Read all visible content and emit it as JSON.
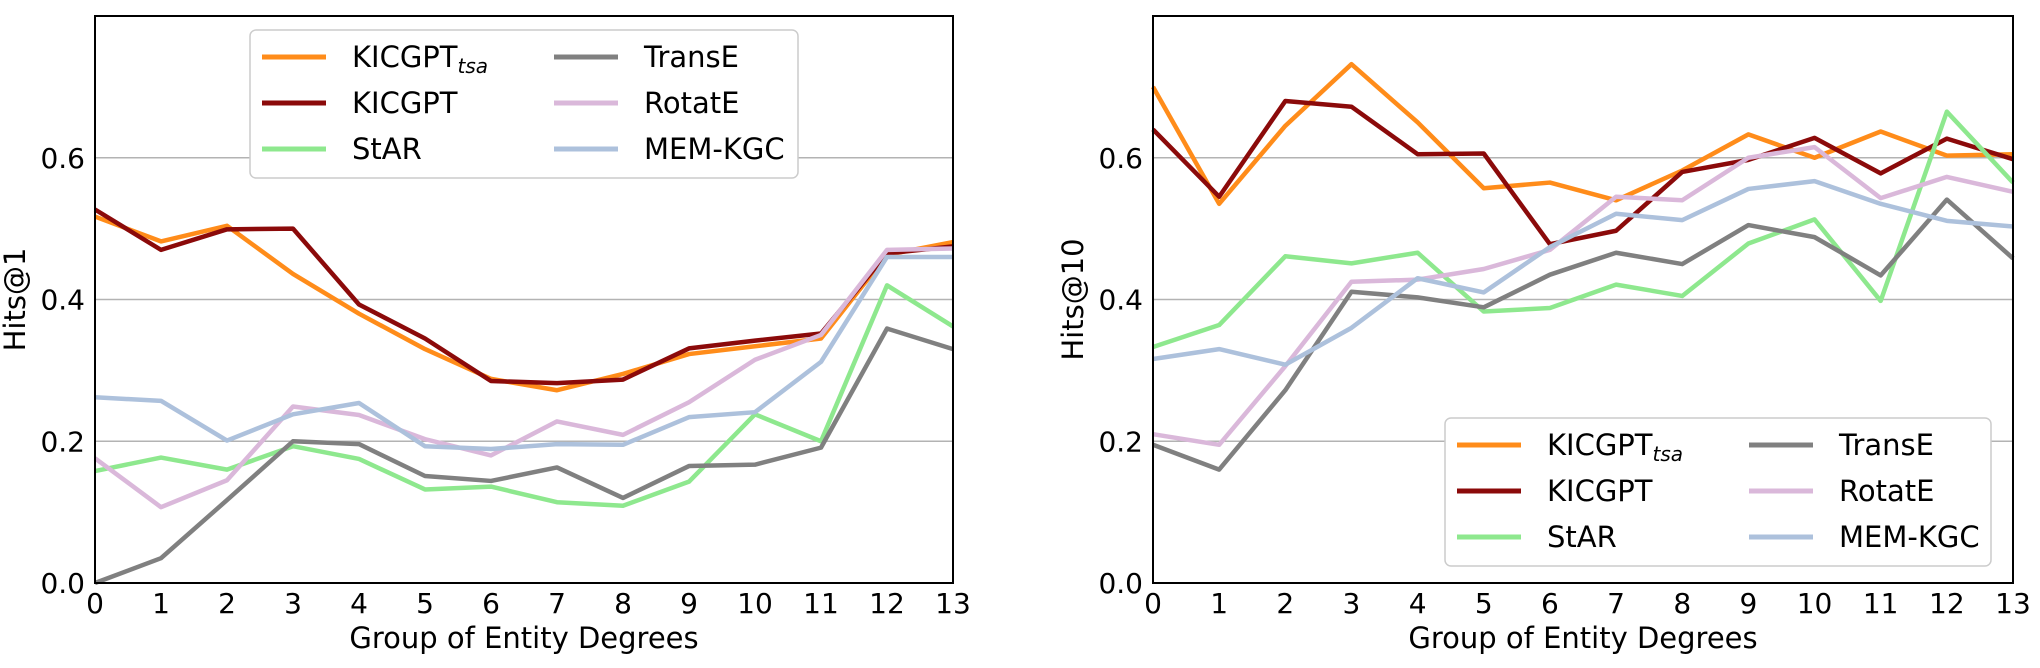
{
  "chart_data": [
    {
      "type": "line",
      "title": "",
      "xlabel": "Group of Entity Degrees",
      "ylabel": "Hits@1",
      "x": [
        0,
        1,
        2,
        3,
        4,
        5,
        6,
        7,
        8,
        9,
        10,
        11,
        12,
        13
      ],
      "xlim": [
        0,
        13
      ],
      "ylim": [
        0,
        0.8
      ],
      "yticks": [
        0.0,
        0.2,
        0.4,
        0.6
      ],
      "ytick_labels": [
        "0.0",
        "0.2",
        "0.4",
        "0.6"
      ],
      "grid": "horizontal",
      "legend_position": "top-center",
      "series": [
        {
          "name": "KICGPT",
          "name_sub": "tsa",
          "color": "#ff8c1a",
          "values": [
            0.517,
            0.482,
            0.504,
            0.436,
            0.38,
            0.33,
            0.288,
            0.272,
            0.295,
            0.323,
            0.334,
            0.345,
            0.463,
            0.481
          ]
        },
        {
          "name": "KICGPT",
          "name_sub": "",
          "color": "#8b0a0a",
          "values": [
            0.527,
            0.47,
            0.499,
            0.5,
            0.393,
            0.345,
            0.285,
            0.282,
            0.287,
            0.331,
            0.342,
            0.352,
            0.465,
            0.475
          ]
        },
        {
          "name": "StAR",
          "name_sub": "",
          "color": "#8ee88e",
          "values": [
            0.158,
            0.177,
            0.16,
            0.193,
            0.175,
            0.132,
            0.136,
            0.114,
            0.109,
            0.143,
            0.238,
            0.2,
            0.42,
            0.362
          ]
        },
        {
          "name": "TransE",
          "name_sub": "",
          "color": "#808080",
          "values": [
            0.0,
            0.035,
            0.117,
            0.2,
            0.196,
            0.151,
            0.144,
            0.163,
            0.12,
            0.165,
            0.167,
            0.191,
            0.359,
            0.33
          ]
        },
        {
          "name": "RotatE",
          "name_sub": "",
          "color": "#dab8da",
          "values": [
            0.176,
            0.107,
            0.145,
            0.249,
            0.237,
            0.203,
            0.18,
            0.228,
            0.209,
            0.255,
            0.315,
            0.35,
            0.47,
            0.472
          ]
        },
        {
          "name": "MEM-KGC",
          "name_sub": "",
          "color": "#adc1dc",
          "values": [
            0.262,
            0.257,
            0.201,
            0.238,
            0.254,
            0.193,
            0.189,
            0.196,
            0.195,
            0.234,
            0.241,
            0.312,
            0.46,
            0.46
          ]
        }
      ]
    },
    {
      "type": "line",
      "title": "",
      "xlabel": "Group of Entity Degrees",
      "ylabel": "Hits@10",
      "x": [
        0,
        1,
        2,
        3,
        4,
        5,
        6,
        7,
        8,
        9,
        10,
        11,
        12,
        13
      ],
      "xlim": [
        0,
        13
      ],
      "ylim": [
        0,
        0.8
      ],
      "yticks": [
        0.0,
        0.2,
        0.4,
        0.6
      ],
      "ytick_labels": [
        "0.0",
        "0.2",
        "0.4",
        "0.6"
      ],
      "grid": "horizontal",
      "legend_position": "bottom-right",
      "series": [
        {
          "name": "KICGPT",
          "name_sub": "tsa",
          "color": "#ff8c1a",
          "values": [
            0.7,
            0.535,
            0.645,
            0.732,
            0.65,
            0.557,
            0.565,
            0.54,
            0.582,
            0.633,
            0.6,
            0.637,
            0.603,
            0.605
          ]
        },
        {
          "name": "KICGPT",
          "name_sub": "",
          "color": "#8b0a0a",
          "values": [
            0.64,
            0.545,
            0.68,
            0.672,
            0.605,
            0.606,
            0.478,
            0.497,
            0.58,
            0.597,
            0.628,
            0.578,
            0.627,
            0.598
          ]
        },
        {
          "name": "StAR",
          "name_sub": "",
          "color": "#8ee88e",
          "values": [
            0.333,
            0.364,
            0.461,
            0.451,
            0.466,
            0.383,
            0.388,
            0.421,
            0.405,
            0.479,
            0.513,
            0.398,
            0.665,
            0.565
          ]
        },
        {
          "name": "TransE",
          "name_sub": "",
          "color": "#808080",
          "values": [
            0.195,
            0.16,
            0.272,
            0.411,
            0.403,
            0.389,
            0.435,
            0.466,
            0.45,
            0.505,
            0.488,
            0.434,
            0.541,
            0.458
          ]
        },
        {
          "name": "RotatE",
          "name_sub": "",
          "color": "#dab8da",
          "values": [
            0.21,
            0.195,
            0.306,
            0.425,
            0.428,
            0.443,
            0.47,
            0.545,
            0.54,
            0.6,
            0.615,
            0.543,
            0.573,
            0.552
          ]
        },
        {
          "name": "MEM-KGC",
          "name_sub": "",
          "color": "#adc1dc",
          "values": [
            0.316,
            0.33,
            0.308,
            0.36,
            0.43,
            0.41,
            0.474,
            0.521,
            0.512,
            0.556,
            0.567,
            0.535,
            0.511,
            0.503
          ]
        }
      ]
    }
  ]
}
